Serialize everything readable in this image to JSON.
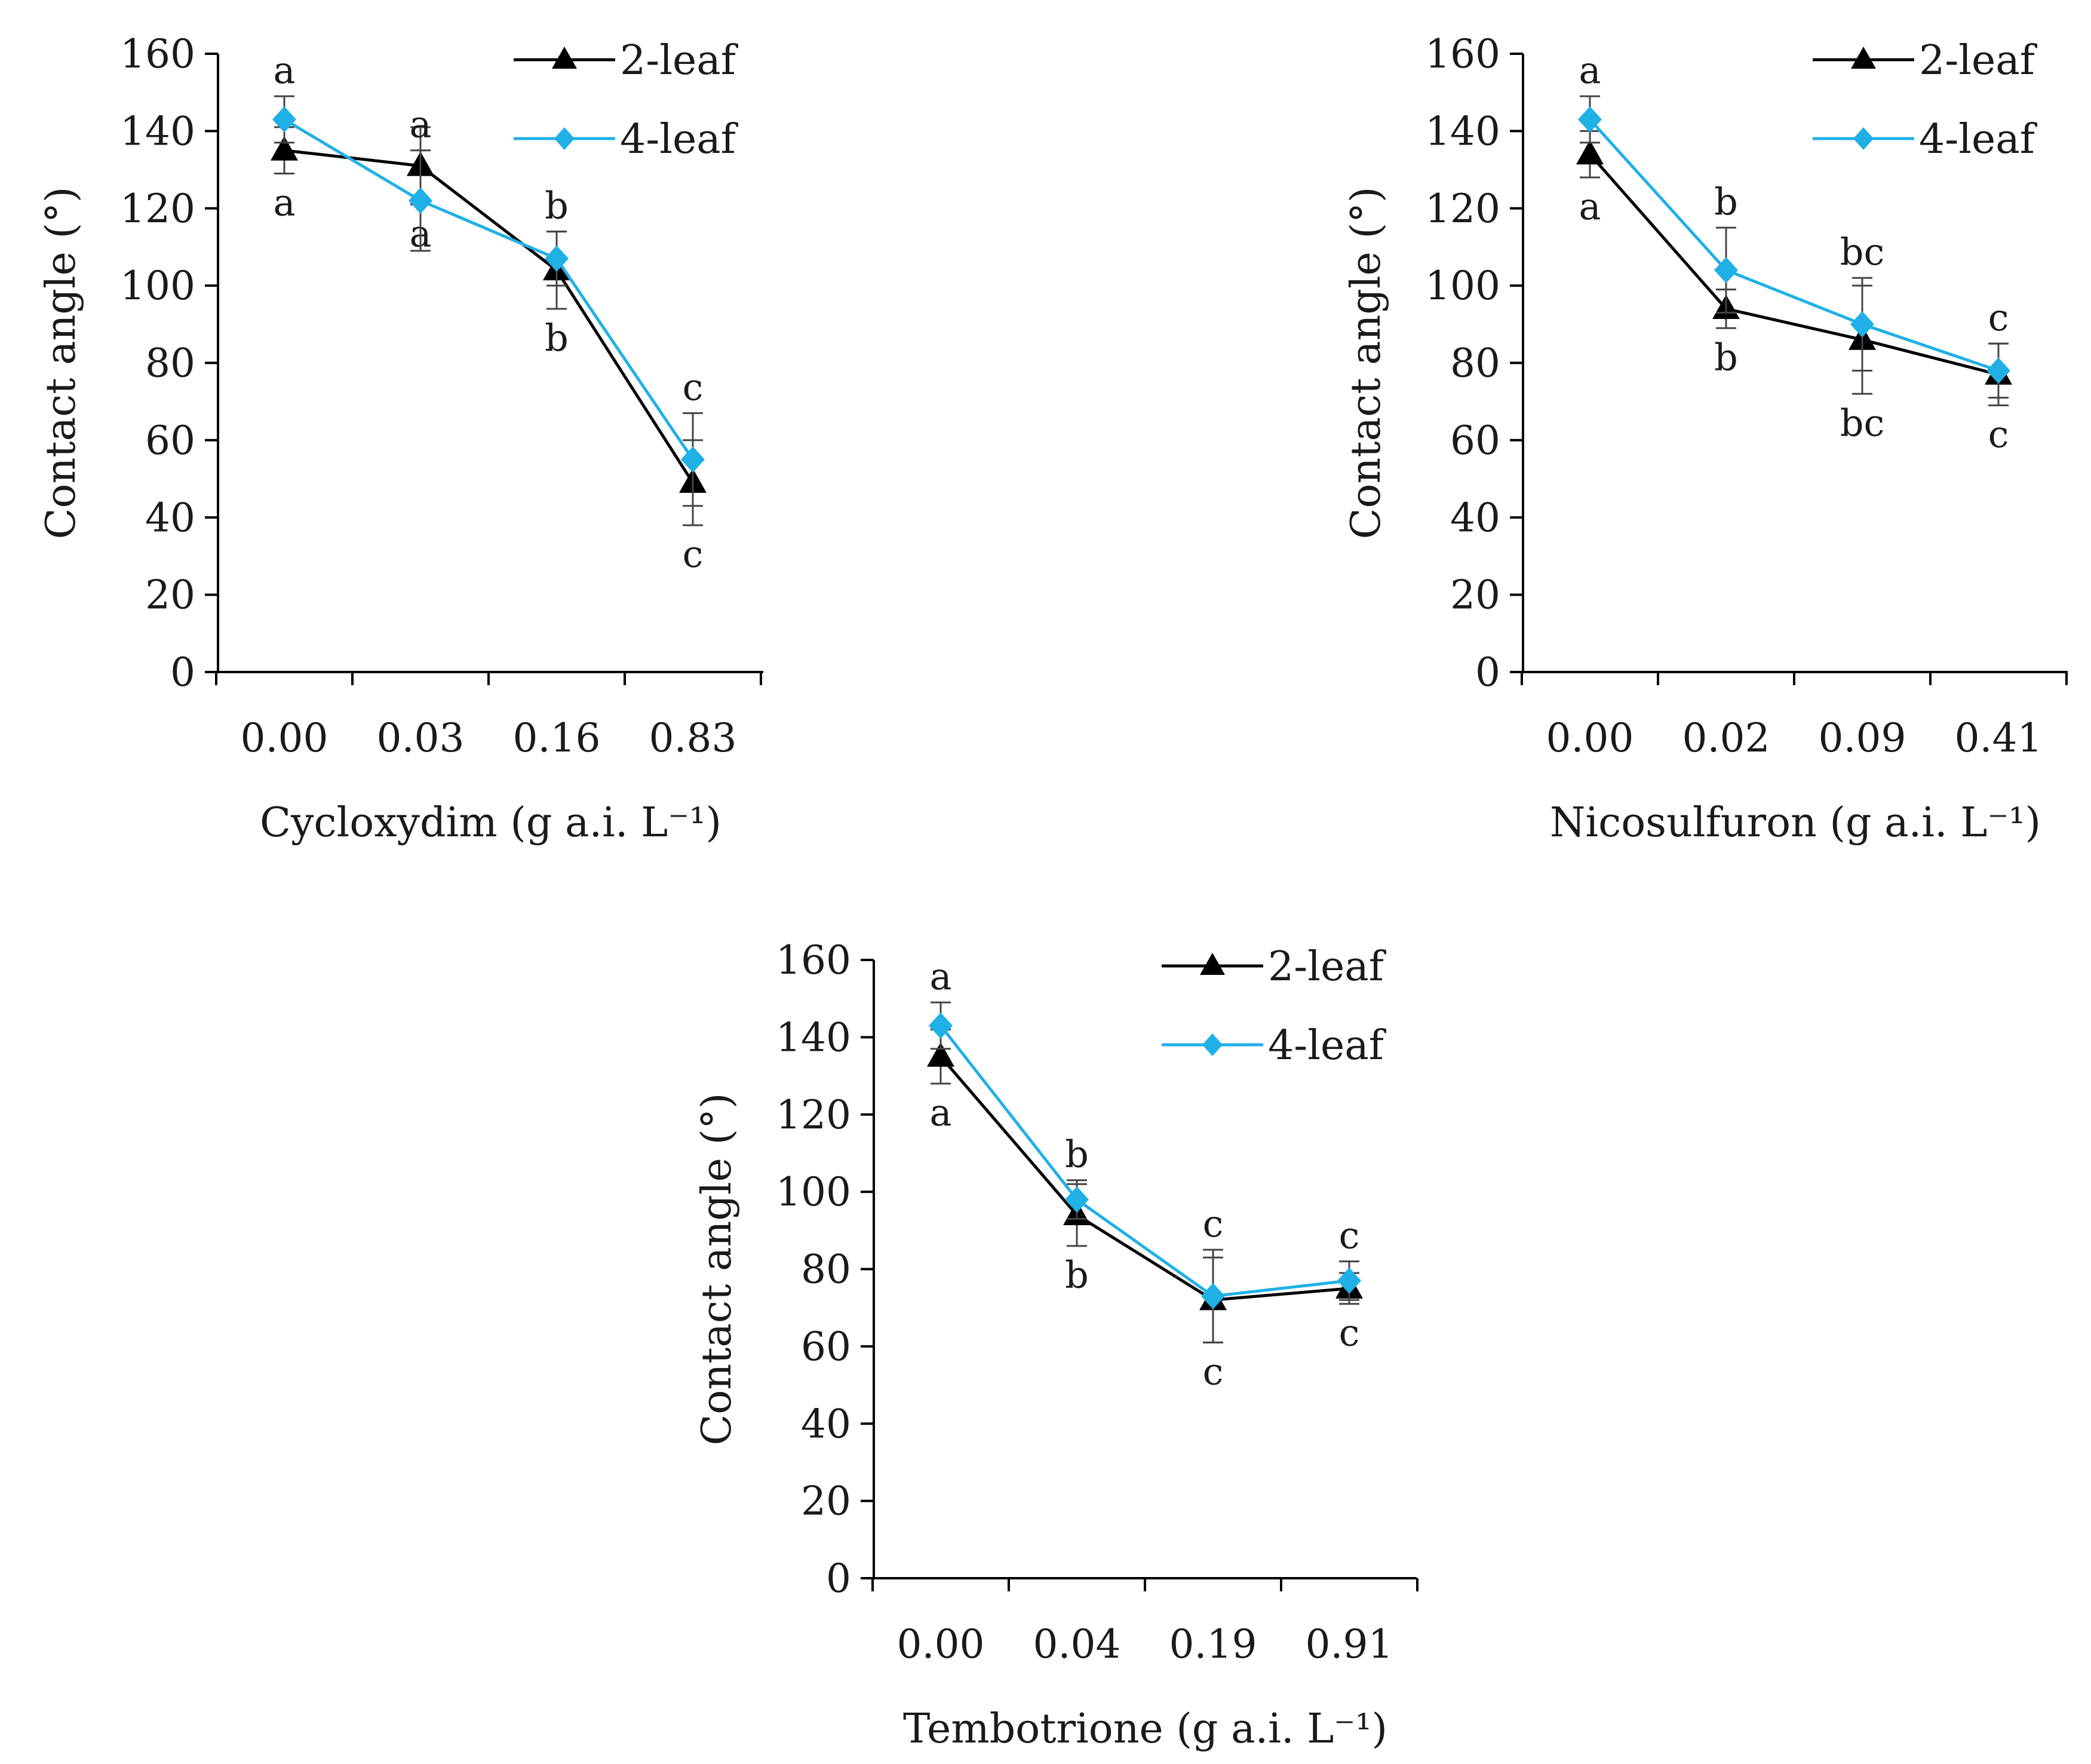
{
  "colors": {
    "series_2leaf": "#000000",
    "series_4leaf": "#1fb0e6",
    "axis": "#000000",
    "text": "#1a1a1a"
  },
  "chart_data": [
    {
      "type": "line",
      "xlabel": "Cycloxydim (g a.i. L⁻¹)",
      "ylabel": "Contact angle (°)",
      "categories": [
        "0.00",
        "0.03",
        "0.16",
        "0.83"
      ],
      "ylim": [
        0,
        160
      ],
      "yticks": [
        "0",
        "20",
        "40",
        "60",
        "80",
        "100",
        "120",
        "140",
        "160"
      ],
      "legend_position": "top-right",
      "series": [
        {
          "name": "2-leaf",
          "marker": "triangle",
          "values": [
            135,
            131,
            104,
            49
          ],
          "errors": [
            6,
            10,
            10,
            11
          ],
          "letters": [
            "a",
            "a",
            "b",
            "c"
          ],
          "letter_side": "below"
        },
        {
          "name": "4-leaf",
          "marker": "diamond",
          "values": [
            143,
            122,
            107,
            55
          ],
          "errors": [
            6,
            13,
            7,
            12
          ],
          "letters": [
            "a",
            "a",
            "b",
            "c"
          ],
          "letter_side": "above"
        }
      ]
    },
    {
      "type": "line",
      "xlabel": "Nicosulfuron (g a.i. L⁻¹)",
      "ylabel": "Contact angle (°)",
      "categories": [
        "0.00",
        "0.02",
        "0.09",
        "0.41"
      ],
      "ylim": [
        0,
        160
      ],
      "yticks": [
        "0",
        "20",
        "40",
        "60",
        "80",
        "100",
        "120",
        "140",
        "160"
      ],
      "legend_position": "top-right",
      "series": [
        {
          "name": "2-leaf",
          "marker": "triangle",
          "values": [
            134,
            94,
            86,
            77
          ],
          "errors": [
            6,
            5,
            14,
            8
          ],
          "letters": [
            "a",
            "b",
            "bc",
            "c"
          ],
          "letter_side": "below"
        },
        {
          "name": "4-leaf",
          "marker": "diamond",
          "values": [
            143,
            104,
            90,
            78
          ],
          "errors": [
            6,
            11,
            12,
            7
          ],
          "letters": [
            "a",
            "b",
            "bc",
            "c"
          ],
          "letter_side": "above"
        }
      ]
    },
    {
      "type": "line",
      "xlabel": "Tembotrione (g a.i. L⁻¹)",
      "ylabel": "Contact angle (°)",
      "categories": [
        "0.00",
        "0.04",
        "0.19",
        "0.91"
      ],
      "ylim": [
        0,
        160
      ],
      "yticks": [
        "0",
        "20",
        "40",
        "60",
        "80",
        "100",
        "120",
        "140",
        "160"
      ],
      "legend_position": "top-right",
      "series": [
        {
          "name": "2-leaf",
          "marker": "triangle",
          "values": [
            135,
            94,
            72,
            75
          ],
          "errors": [
            7,
            8,
            11,
            4
          ],
          "letters": [
            "a",
            "b",
            "c",
            "c"
          ],
          "letter_side": "below"
        },
        {
          "name": "4-leaf",
          "marker": "diamond",
          "values": [
            143,
            98,
            73,
            77
          ],
          "errors": [
            6,
            5,
            12,
            5
          ],
          "letters": [
            "a",
            "b",
            "c",
            "c"
          ],
          "letter_side": "above"
        }
      ]
    }
  ]
}
